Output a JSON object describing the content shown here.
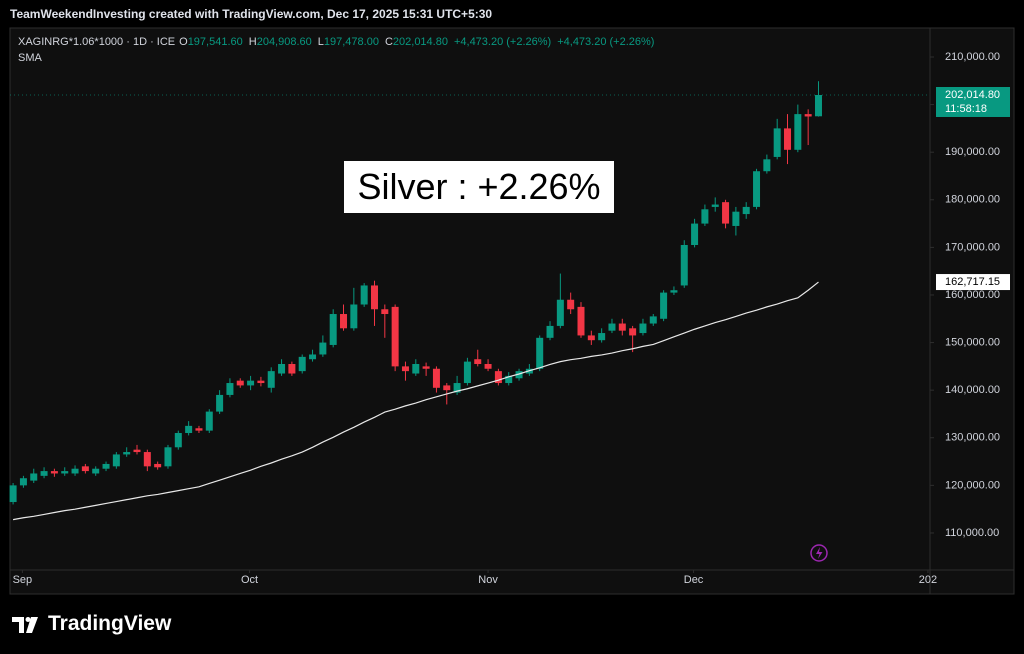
{
  "credit": "TeamWeekendInvesting created with TradingView.com, Dec 17, 2025 15:31 UTC+5:30",
  "brand": "TradingView",
  "chart_data": {
    "type": "candlestick",
    "symbol": "XAGINRG*1.06*1000 · 1D · ICE",
    "ohlc_legend": [
      {
        "label": "O",
        "value": "197,541.60"
      },
      {
        "label": "H",
        "value": "204,908.60"
      },
      {
        "label": "L",
        "value": "197,478.00"
      },
      {
        "label": "C",
        "value": "202,014.80"
      }
    ],
    "change": [
      "+4,473.20 (+2.26%)",
      "+4,473.20 (+2.26%)"
    ],
    "annotation": "Silver : +2.26%",
    "up_color": "#089981",
    "down_color": "#f23645",
    "open": [
      116500,
      120000,
      121000,
      122000,
      123000,
      122500,
      122500,
      124000,
      122500,
      123500,
      124000,
      126500,
      127500,
      127000,
      124500,
      124000,
      128000,
      131000,
      132000,
      131500,
      135500,
      139000,
      142000,
      141000,
      142000,
      140500,
      143500,
      145500,
      144000,
      146500,
      147500,
      149500,
      156000,
      153000,
      158000,
      162000,
      157000,
      157500,
      145000,
      143500,
      145000,
      144500,
      141000,
      139500,
      141500,
      146500,
      145500,
      144000,
      141500,
      142500,
      143500,
      144500,
      151000,
      153500,
      159000,
      157500,
      151500,
      150500,
      152500,
      154000,
      153000,
      152000,
      154000,
      155000,
      160500,
      162000,
      170500,
      175000,
      178500,
      179500,
      174500,
      177000,
      178500,
      186000,
      189000,
      195000,
      190500,
      198000,
      197541.6
    ],
    "high": [
      120500,
      122000,
      123500,
      123800,
      123500,
      123800,
      124200,
      124500,
      124000,
      125000,
      127000,
      128000,
      128500,
      127500,
      125000,
      128500,
      131500,
      133500,
      132500,
      136000,
      140000,
      142500,
      142500,
      143000,
      142800,
      144800,
      146500,
      146000,
      147500,
      148500,
      151500,
      157000,
      158000,
      161500,
      162500,
      163000,
      158000,
      158000,
      146000,
      146500,
      145800,
      145000,
      141500,
      143000,
      146800,
      148500,
      146500,
      144500,
      143800,
      144500,
      145500,
      151500,
      154500,
      164500,
      160500,
      158500,
      152500,
      153000,
      155000,
      155000,
      153500,
      155000,
      156000,
      161000,
      161800,
      171500,
      176000,
      179000,
      180500,
      180000,
      178500,
      179500,
      186500,
      189500,
      197000,
      198000,
      200000,
      199000,
      204908.6
    ],
    "low": [
      116000,
      119500,
      120500,
      121500,
      121800,
      122000,
      122000,
      122500,
      122000,
      123000,
      123500,
      126000,
      126500,
      123000,
      123300,
      123500,
      127500,
      130500,
      131000,
      131000,
      135000,
      138500,
      140500,
      140000,
      140800,
      139500,
      143000,
      143000,
      143500,
      146000,
      147000,
      149000,
      152500,
      152500,
      157500,
      153500,
      151000,
      144000,
      142000,
      143000,
      143000,
      139500,
      137000,
      139000,
      141000,
      145000,
      144000,
      141000,
      141000,
      142000,
      143000,
      144000,
      150500,
      153000,
      156000,
      151000,
      149500,
      150000,
      152000,
      151500,
      148000,
      151500,
      153500,
      154500,
      160000,
      161500,
      170000,
      174500,
      177500,
      174000,
      172500,
      176000,
      178000,
      185500,
      188500,
      187500,
      190000,
      191500,
      197478
    ],
    "close": [
      120000,
      121500,
      122500,
      123000,
      122500,
      123000,
      123500,
      123000,
      123500,
      124500,
      126500,
      127000,
      127000,
      124000,
      123800,
      128000,
      131000,
      132500,
      131500,
      135500,
      139000,
      141500,
      141000,
      142000,
      141500,
      144000,
      145500,
      143500,
      147000,
      147500,
      150000,
      156000,
      153000,
      158000,
      162000,
      157000,
      156000,
      145000,
      144000,
      145500,
      144500,
      140500,
      140000,
      141500,
      146000,
      145500,
      144500,
      141500,
      143000,
      144000,
      144500,
      151000,
      153500,
      159000,
      157000,
      151500,
      150500,
      152000,
      154000,
      152500,
      151500,
      154000,
      155500,
      160500,
      161000,
      170500,
      175000,
      178000,
      179000,
      175000,
      177500,
      178500,
      186000,
      188500,
      195000,
      190500,
      198000,
      197500,
      202014.8
    ],
    "series": [
      {
        "name": "SMA",
        "color": "#e8e8e8",
        "values": [
          112800,
          113200,
          113500,
          113900,
          114300,
          114700,
          115000,
          115400,
          115800,
          116200,
          116600,
          117000,
          117400,
          117800,
          118100,
          118500,
          118900,
          119300,
          119700,
          120400,
          121100,
          121800,
          122500,
          123200,
          124000,
          124700,
          125500,
          126200,
          127000,
          128000,
          129100,
          130100,
          131200,
          132200,
          133300,
          134300,
          135400,
          136000,
          136700,
          137300,
          138000,
          138600,
          139200,
          139800,
          140300,
          140900,
          141500,
          142100,
          142800,
          143400,
          144100,
          144700,
          145400,
          146000,
          146400,
          146700,
          147100,
          147400,
          147800,
          148300,
          148700,
          149200,
          149600,
          150400,
          151200,
          152000,
          152800,
          153500,
          154200,
          154800,
          155500,
          156200,
          156800,
          157500,
          158100,
          158800,
          159400,
          161000,
          162717.15
        ]
      }
    ],
    "last_price": {
      "value": 202014.8,
      "label": "202,014.80"
    },
    "countdown": "11:58:18",
    "sma_last": {
      "value": 162717.15,
      "label": "162,717.15"
    },
    "xlim": [
      -0.3,
      88.8
    ],
    "xticks": [
      {
        "value": 0.9,
        "label": "Sep"
      },
      {
        "value": 22.9,
        "label": "Oct"
      },
      {
        "value": 46,
        "label": "Nov"
      },
      {
        "value": 65.9,
        "label": "Dec"
      },
      {
        "value": 88.6,
        "label": "202"
      }
    ],
    "ylim": [
      102220,
      216090
    ],
    "yticks": [
      {
        "value": 110000,
        "label": "110,000.00"
      },
      {
        "value": 120000,
        "label": "120,000.00"
      },
      {
        "value": 130000,
        "label": "130,000.00"
      },
      {
        "value": 140000,
        "label": "140,000.00"
      },
      {
        "value": 150000,
        "label": "150,000.00"
      },
      {
        "value": 160000,
        "label": "160,000.00"
      },
      {
        "value": 170000,
        "label": "170,000.00"
      },
      {
        "value": 180000,
        "label": "180,000.00"
      },
      {
        "value": 190000,
        "label": "190,000.00"
      },
      {
        "value": 200000,
        "label": "200,000.00"
      },
      {
        "value": 210000,
        "label": "210,000.00"
      }
    ],
    "grid": false
  }
}
